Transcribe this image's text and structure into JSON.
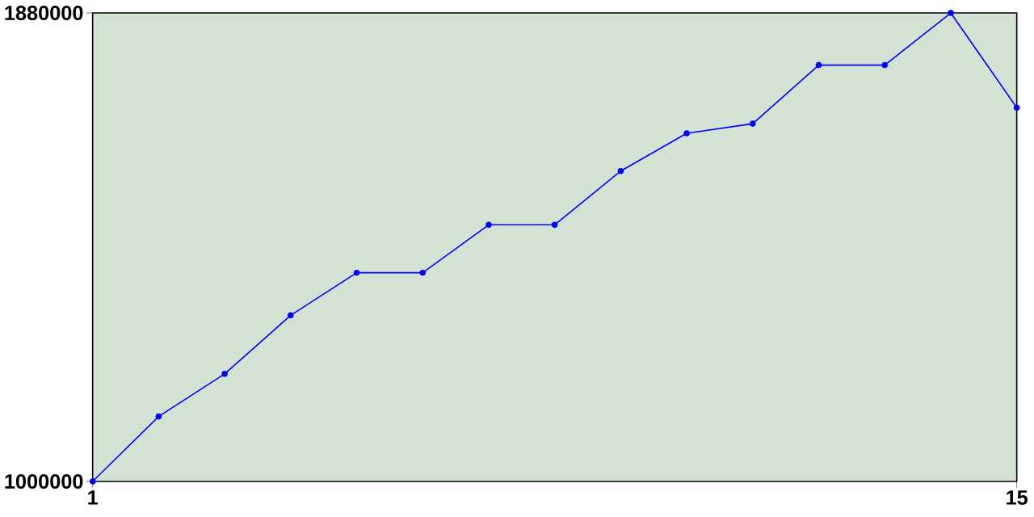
{
  "chart_data": {
    "type": "line",
    "x": [
      1,
      2,
      3,
      4,
      5,
      6,
      7,
      8,
      9,
      10,
      11,
      12,
      13,
      14,
      15
    ],
    "series": [
      {
        "color": "#0000ff",
        "values": [
          1000000,
          1122000,
          1202000,
          1312000,
          1392000,
          1392000,
          1482000,
          1482000,
          1583000,
          1654000,
          1672000,
          1782000,
          1782000,
          1880000,
          1702000
        ]
      }
    ],
    "xlim": [
      1,
      15
    ],
    "ylim": [
      1000000,
      1880000
    ],
    "xticks": [
      1,
      15
    ],
    "yticks": [
      1000000,
      1880000
    ],
    "marker": "circle",
    "grid": false
  }
}
